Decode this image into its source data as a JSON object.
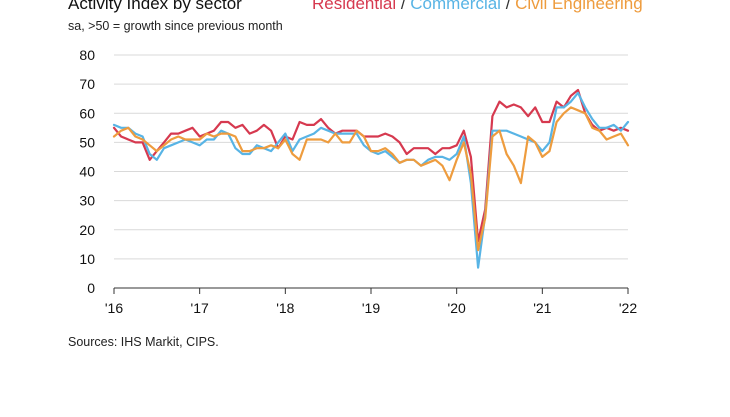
{
  "chart_data": {
    "type": "line",
    "title": "Activity Index by sector",
    "subtitle": "sa, >50 = growth since previous month",
    "source": "Sources: IHS Markit, CIPS.",
    "legend_position": "top",
    "legend_separator": " / ",
    "ylim": [
      0,
      80
    ],
    "yticks": [
      0,
      10,
      20,
      30,
      40,
      50,
      60,
      70,
      80
    ],
    "xlim": [
      2016.0,
      2022.0
    ],
    "xticks": [
      2016,
      2017,
      2018,
      2019,
      2020,
      2021,
      2022
    ],
    "xtick_labels": [
      "'16",
      "'17",
      "'18",
      "'19",
      "'20",
      "'21",
      "'22"
    ],
    "grid": "horizontal",
    "series": [
      {
        "name": "Residential",
        "color": "#d6394f",
        "values": [
          55,
          52,
          51,
          50,
          50,
          44,
          47,
          50,
          53,
          53,
          54,
          55,
          52,
          53,
          54,
          57,
          57,
          55,
          56,
          53,
          54,
          56,
          54,
          48,
          52,
          51,
          57,
          56,
          56,
          58,
          55,
          53,
          54,
          54,
          54,
          52,
          52,
          52,
          53,
          52,
          50,
          46,
          48,
          48,
          48,
          46,
          48,
          48,
          49,
          54,
          45,
          16,
          27,
          59,
          64,
          62,
          63,
          62,
          59,
          62,
          57,
          57,
          64,
          62,
          66,
          68,
          60,
          56,
          54,
          55,
          54,
          55,
          54
        ]
      },
      {
        "name": "Commercial",
        "color": "#58b4e5",
        "values": [
          56,
          55,
          55,
          53,
          52,
          46,
          44,
          48,
          49,
          50,
          51,
          50,
          49,
          51,
          51,
          54,
          53,
          48,
          46,
          46,
          49,
          48,
          47,
          50,
          53,
          47,
          51,
          52,
          53,
          55,
          54,
          53,
          53,
          53,
          53,
          49,
          47,
          46,
          47,
          45,
          43,
          44,
          44,
          42,
          44,
          45,
          45,
          44,
          46,
          52,
          36,
          7,
          25,
          54,
          54,
          54,
          53,
          52,
          51,
          50,
          47,
          50,
          62,
          62,
          64,
          67,
          62,
          58,
          55,
          55,
          56,
          54,
          57
        ]
      },
      {
        "name": "Civil Engineering",
        "color": "#ee9c3e",
        "values": [
          52,
          54,
          55,
          52,
          51,
          49,
          47,
          49,
          51,
          52,
          51,
          51,
          51,
          53,
          52,
          53,
          53,
          52,
          47,
          47,
          48,
          48,
          49,
          48,
          51,
          46,
          44,
          51,
          51,
          51,
          50,
          53,
          50,
          50,
          54,
          52,
          47,
          47,
          48,
          46,
          43,
          44,
          44,
          42,
          43,
          44,
          42,
          37,
          44,
          50,
          39,
          13,
          24,
          52,
          54,
          46,
          42,
          36,
          52,
          50,
          45,
          47,
          57,
          60,
          62,
          61,
          60,
          55,
          54,
          51,
          52,
          53,
          49
        ]
      }
    ]
  }
}
